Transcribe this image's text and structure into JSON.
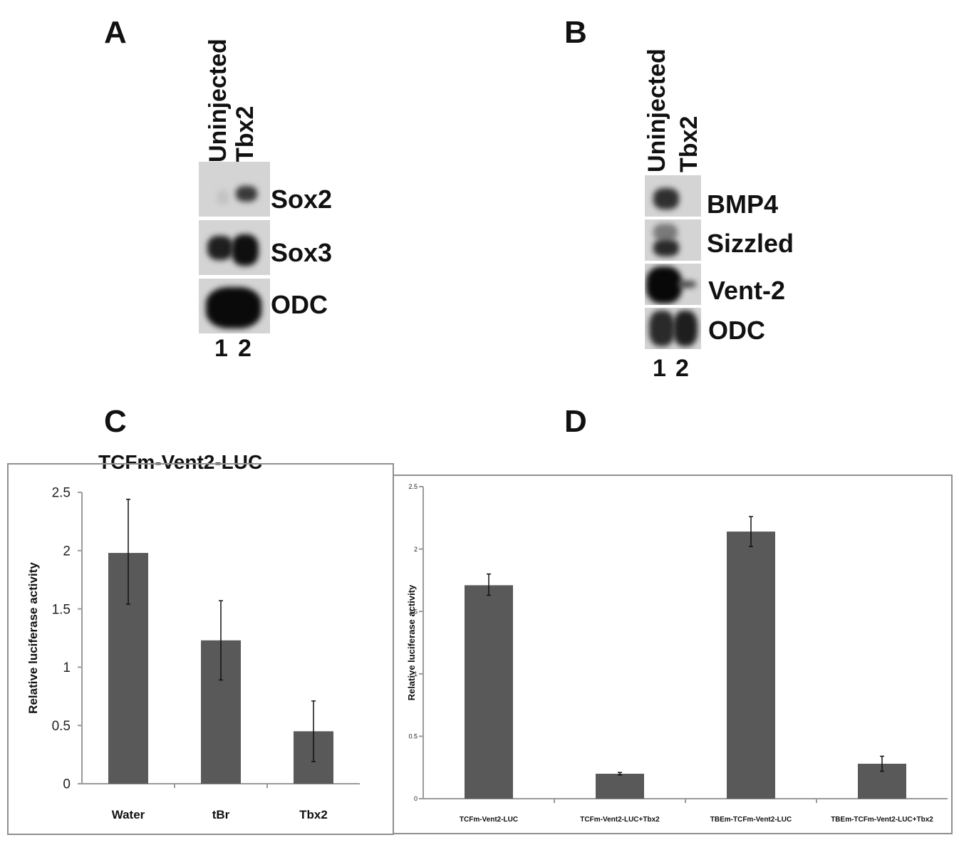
{
  "panels": {
    "A": {
      "letter": "A",
      "lanes": [
        "Uninjected",
        "Tbx2"
      ],
      "genes": [
        "Sox2",
        "Sox3",
        "ODC"
      ],
      "lane_numbers": [
        "1",
        "2"
      ]
    },
    "B": {
      "letter": "B",
      "lanes": [
        "Uninjected",
        "Tbx2"
      ],
      "genes": [
        "BMP4",
        "Sizzled",
        "Vent-2",
        "ODC"
      ],
      "lane_numbers": [
        "1",
        "2"
      ]
    },
    "C": {
      "letter": "C"
    },
    "D": {
      "letter": "D"
    }
  },
  "colors": {
    "bar": "#595959",
    "axis": "#9a9a9a",
    "error": "#111111",
    "frame": "#8f8f8f"
  },
  "chart_data": [
    {
      "type": "bar",
      "panel": "C",
      "title": "TCFm-Vent2-LUC",
      "xlabel": "",
      "ylabel": "Relative luciferase activity",
      "categories": [
        "Water",
        "tBr",
        "Tbx2"
      ],
      "values": [
        1.98,
        1.23,
        0.45
      ],
      "error_high": [
        2.44,
        1.57,
        0.71
      ],
      "error_low": [
        1.54,
        0.89,
        0.19
      ],
      "ylim": [
        0,
        2.5
      ],
      "yticks": [
        "0",
        "0.5",
        "1",
        "1.5",
        "2",
        "2.5"
      ],
      "grid": false,
      "legend": "none"
    },
    {
      "type": "bar",
      "panel": "D",
      "title": "",
      "xlabel": "",
      "ylabel": "Relative luciferase activity",
      "categories": [
        "TCFm-Vent2-LUC",
        "TCFm-Vent2-LUC+Tbx2",
        "TBEm-TCFm-Vent2-LUC",
        "TBEm-TCFm-Vent2-LUC+Tbx2"
      ],
      "values": [
        1.71,
        0.2,
        2.14,
        0.28
      ],
      "error_high": [
        1.8,
        0.21,
        2.26,
        0.34
      ],
      "error_low": [
        1.63,
        0.19,
        2.02,
        0.22
      ],
      "ylim": [
        0,
        2.5
      ],
      "yticks": [
        "0",
        "0.5",
        "1",
        "1.5",
        "2",
        "2.5"
      ],
      "grid": false,
      "legend": "none"
    }
  ]
}
